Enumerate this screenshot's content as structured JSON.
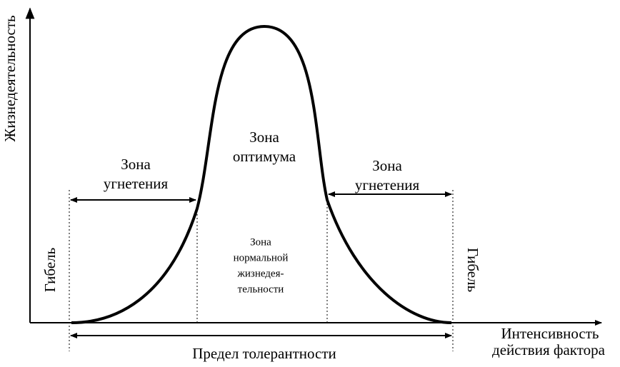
{
  "axes": {
    "y_label": "Жизнедеятельность",
    "x_label": [
      "Интенсивность",
      "действия фактора"
    ]
  },
  "zones": {
    "optimum": [
      "Зона",
      "оптимума"
    ],
    "left_suppression": [
      "Зона",
      "угнетения"
    ],
    "right_suppression": [
      "Зона",
      "угнетения"
    ],
    "normal": [
      "Зона",
      "нормальной",
      "жизнедея-",
      "тельности"
    ],
    "death_left": "Гибель",
    "death_right": "Гибель"
  },
  "tolerance_limit": "Предел толерантности"
}
